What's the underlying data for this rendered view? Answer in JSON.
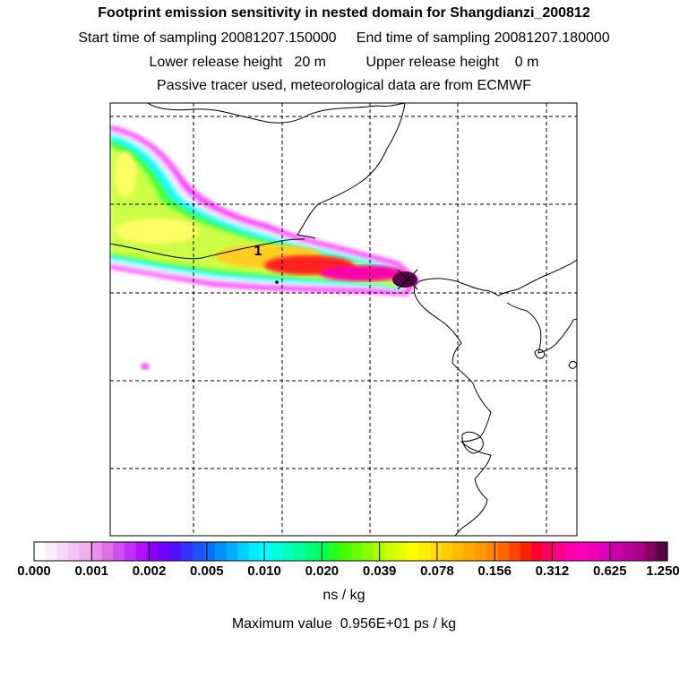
{
  "title": "Footprint emission sensitivity in nested domain for Shangdianzi_200812",
  "sampling": {
    "start_label": "Start time of sampling",
    "start_value": "20081207.150000",
    "end_label": "End time of sampling",
    "end_value": "20081207.180000"
  },
  "release": {
    "lower_label": "Lower release height",
    "lower_value": "20 m",
    "upper_label": "Upper release height",
    "upper_value": "0 m"
  },
  "note": "Passive tracer used, meteorological data are from ECMWF",
  "map": {
    "release_point_label": "1",
    "plume_colors": [
      "#e4f0ff",
      "#ff44ff",
      "#00ffff",
      "#44ff44",
      "#ccff44",
      "#ffff66",
      "#ffcc22",
      "#ff2222",
      "#ff00aa",
      "#550044"
    ]
  },
  "colorbar": {
    "tick_labels": [
      "0.000",
      "0.001",
      "0.002",
      "0.005",
      "0.010",
      "0.020",
      "0.039",
      "0.078",
      "0.156",
      "0.312",
      "0.625",
      "1.250"
    ],
    "colors": [
      "#ffffff",
      "#fcecfc",
      "#f8d8f8",
      "#f4c4f4",
      "#f0b0f0",
      "#ea90ea",
      "#e070e8",
      "#d050ef",
      "#c030f5",
      "#b010ff",
      "#9000ff",
      "#7000ff",
      "#5010ff",
      "#3030ff",
      "#2050ff",
      "#0070ff",
      "#0090ff",
      "#00b0ff",
      "#00d0ff",
      "#00ecff",
      "#00ffff",
      "#00ffdd",
      "#00ffbb",
      "#00ff99",
      "#00ff77",
      "#00ff55",
      "#22ff22",
      "#44ff00",
      "#66ff00",
      "#88ff00",
      "#aaff00",
      "#ccff00",
      "#e8ff00",
      "#ffff00",
      "#ffee00",
      "#ffdd00",
      "#ffcc00",
      "#ffbb00",
      "#ffaa00",
      "#ff9900",
      "#ff8800",
      "#ff6600",
      "#ff4400",
      "#ff2200",
      "#ff0033",
      "#ff0066",
      "#ff0088",
      "#ff00aa",
      "#ff00bb",
      "#ee00bb",
      "#dd00bb",
      "#cc00aa",
      "#bb0099",
      "#aa0088",
      "#880066",
      "#550044"
    ],
    "units": "ns / kg"
  },
  "maximum": {
    "label": "Maximum value",
    "value": "0.956E+01 ps / kg"
  }
}
